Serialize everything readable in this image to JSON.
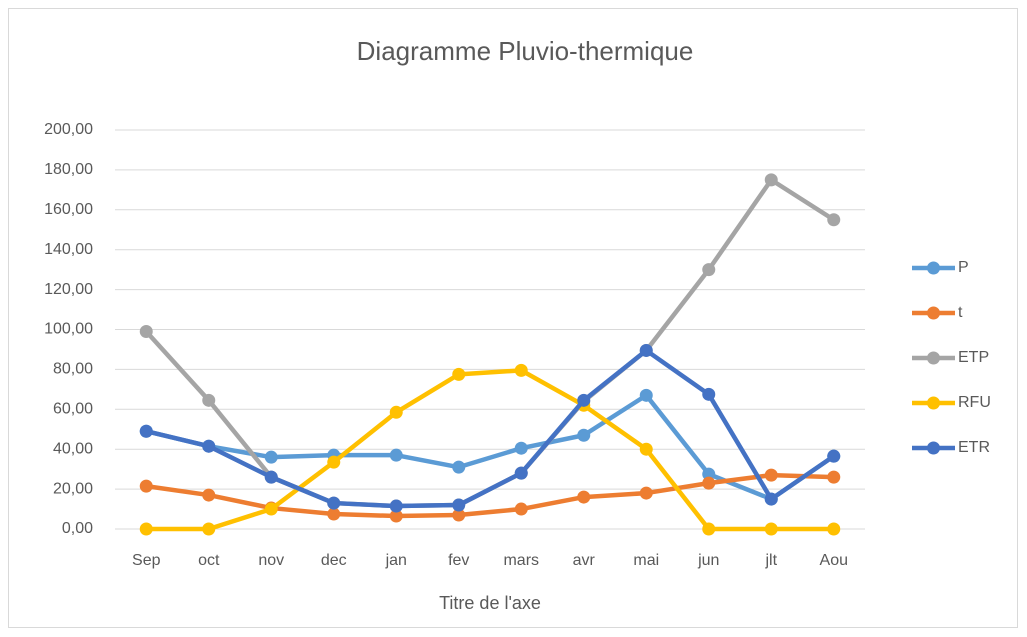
{
  "chart_data": {
    "type": "line",
    "title": "Diagramme Pluvio-thermique",
    "x_label": "Titre de l'axe",
    "categories": [
      "Sep",
      "oct",
      "nov",
      "dec",
      "jan",
      "fev",
      "mars",
      "avr",
      "mai",
      "jun",
      "jlt",
      "Aou"
    ],
    "series": [
      {
        "name": "P",
        "color": "#5b9bd5",
        "values": [
          49,
          41.5,
          36,
          37,
          37,
          31,
          40.5,
          47,
          67,
          27.5,
          15,
          36.5
        ]
      },
      {
        "name": "t",
        "color": "#ed7d31",
        "values": [
          21.5,
          17,
          10.5,
          7.5,
          6.5,
          7,
          10,
          16,
          18,
          23,
          27,
          26
        ]
      },
      {
        "name": "ETP",
        "color": "#a5a5a5",
        "values": [
          99,
          64.5,
          26,
          13,
          11.5,
          12,
          28,
          64,
          89.5,
          130,
          175,
          155
        ]
      },
      {
        "name": "RFU",
        "color": "#ffc000",
        "values": [
          0,
          0,
          10,
          33.5,
          58.5,
          77.5,
          79.5,
          62,
          40,
          0,
          0,
          0
        ]
      },
      {
        "name": "ETR",
        "color": "#4472c4",
        "values": [
          49,
          41.5,
          26,
          13,
          11.5,
          12,
          28,
          64.5,
          89.5,
          67.5,
          15,
          36.5
        ]
      }
    ],
    "ylim": [
      0,
      200
    ],
    "yticks": [
      {
        "value": 0,
        "label": "0,00"
      },
      {
        "value": 20,
        "label": "20,00"
      },
      {
        "value": 40,
        "label": "40,00"
      },
      {
        "value": 60,
        "label": "60,00"
      },
      {
        "value": 80,
        "label": "80,00"
      },
      {
        "value": 100,
        "label": "100,00"
      },
      {
        "value": 120,
        "label": "120,00"
      },
      {
        "value": 140,
        "label": "140,00"
      },
      {
        "value": 160,
        "label": "160,00"
      },
      {
        "value": 180,
        "label": "180,00"
      },
      {
        "value": 200,
        "label": "200,00"
      }
    ],
    "grid": true,
    "legend": "right"
  }
}
